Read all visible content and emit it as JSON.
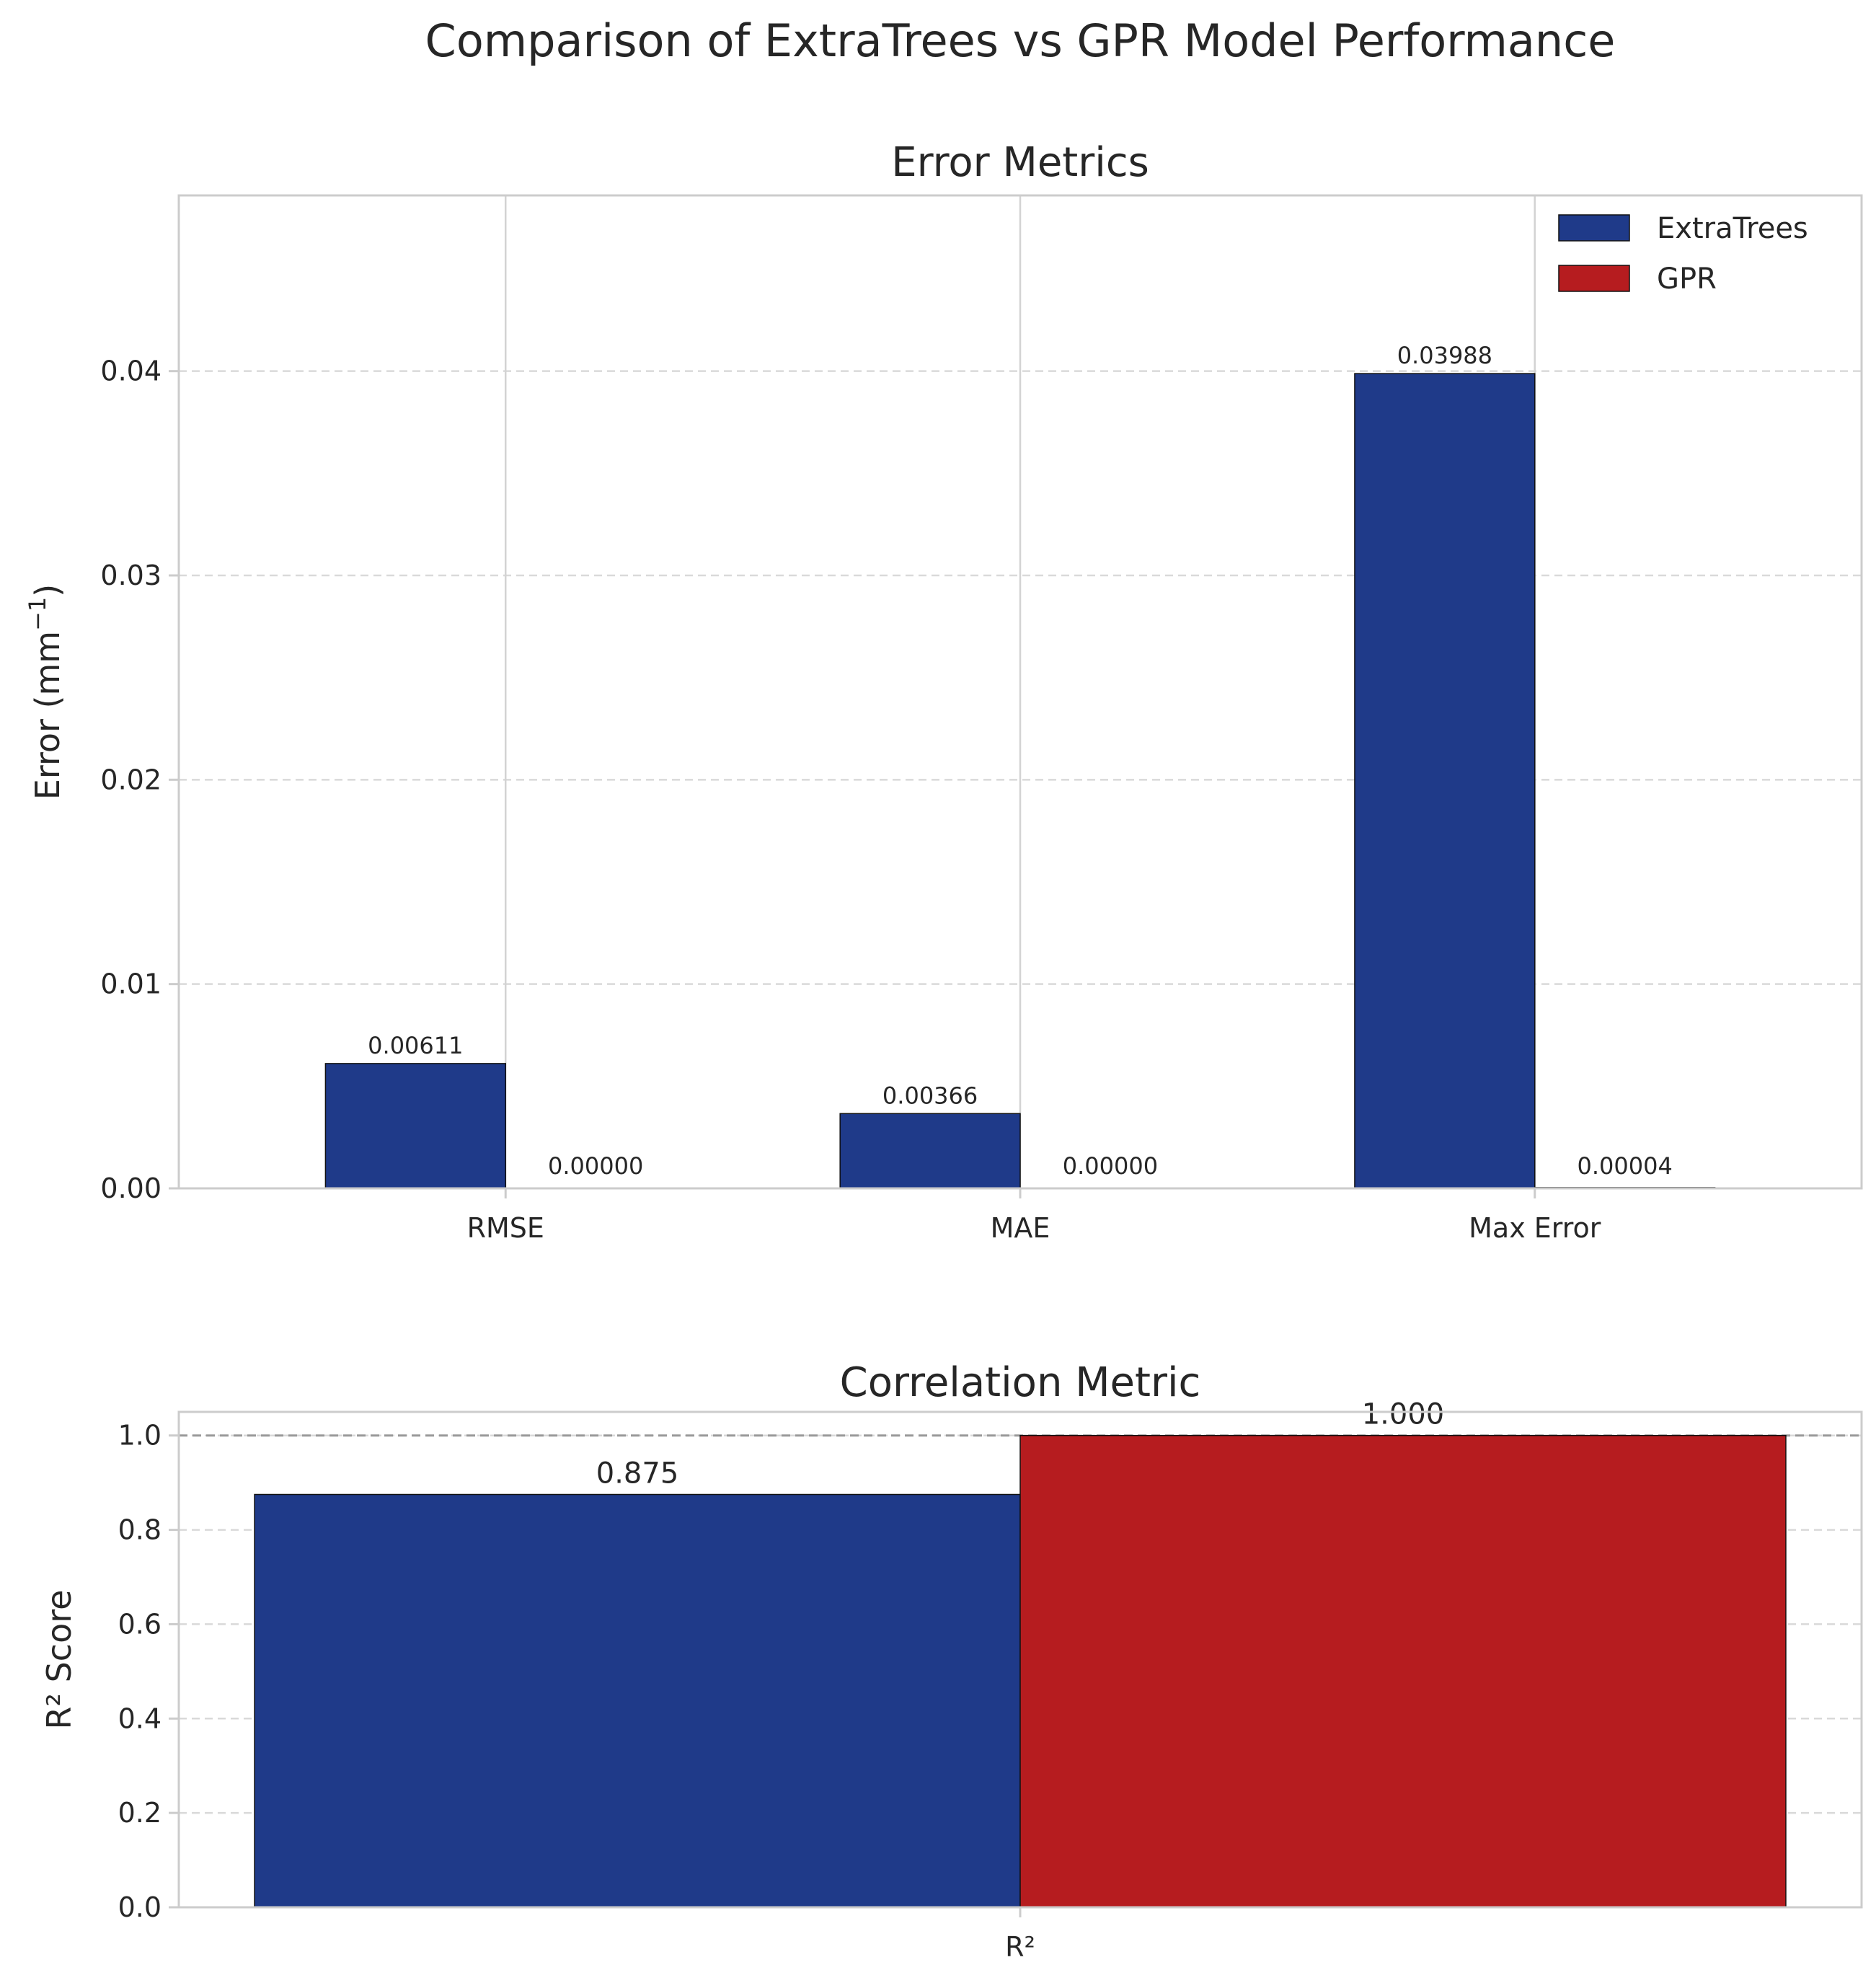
{
  "figure_title": "Comparison of ExtraTrees vs GPR Model Performance",
  "colors": {
    "extratrees": "#1f3a89",
    "gpr": "#b61c1f"
  },
  "chart_data": [
    {
      "type": "bar",
      "title": "Error Metrics",
      "xlabel": "",
      "ylabel": "Error (mm",
      "ylabel_superscript": "−1",
      "ylabel_suffix": ")",
      "categories": [
        "RMSE",
        "MAE",
        "Max Error"
      ],
      "series": [
        {
          "name": "ExtraTrees",
          "values": [
            0.00611,
            0.00366,
            0.03988
          ],
          "labels": [
            "0.00611",
            "0.00366",
            "0.03988"
          ]
        },
        {
          "name": "GPR",
          "values": [
            0.0,
            0.0,
            4e-05
          ],
          "labels": [
            "0.00000",
            "0.00000",
            "0.00004"
          ]
        }
      ],
      "ylim": [
        0,
        0.0486
      ],
      "yticks": [
        0,
        0.01,
        0.02,
        0.03,
        0.04
      ],
      "ytick_labels": [
        "0.00",
        "0.01",
        "0.02",
        "0.03",
        "0.04"
      ],
      "grid": true,
      "legend": "upper right"
    },
    {
      "type": "bar",
      "title": "Correlation Metric",
      "xlabel": "",
      "ylabel": "R² Score",
      "categories": [
        "R²"
      ],
      "series": [
        {
          "name": "ExtraTrees",
          "values": [
            0.875
          ],
          "labels": [
            "0.875"
          ]
        },
        {
          "name": "GPR",
          "values": [
            1.0
          ],
          "labels": [
            "1.000"
          ]
        }
      ],
      "ylim": [
        0,
        1.05
      ],
      "yticks": [
        0,
        0.2,
        0.4,
        0.6,
        0.8,
        1.0
      ],
      "ytick_labels": [
        "0.0",
        "0.2",
        "0.4",
        "0.6",
        "0.8",
        "1.0"
      ],
      "reference_line": 1.0,
      "grid": true
    }
  ]
}
